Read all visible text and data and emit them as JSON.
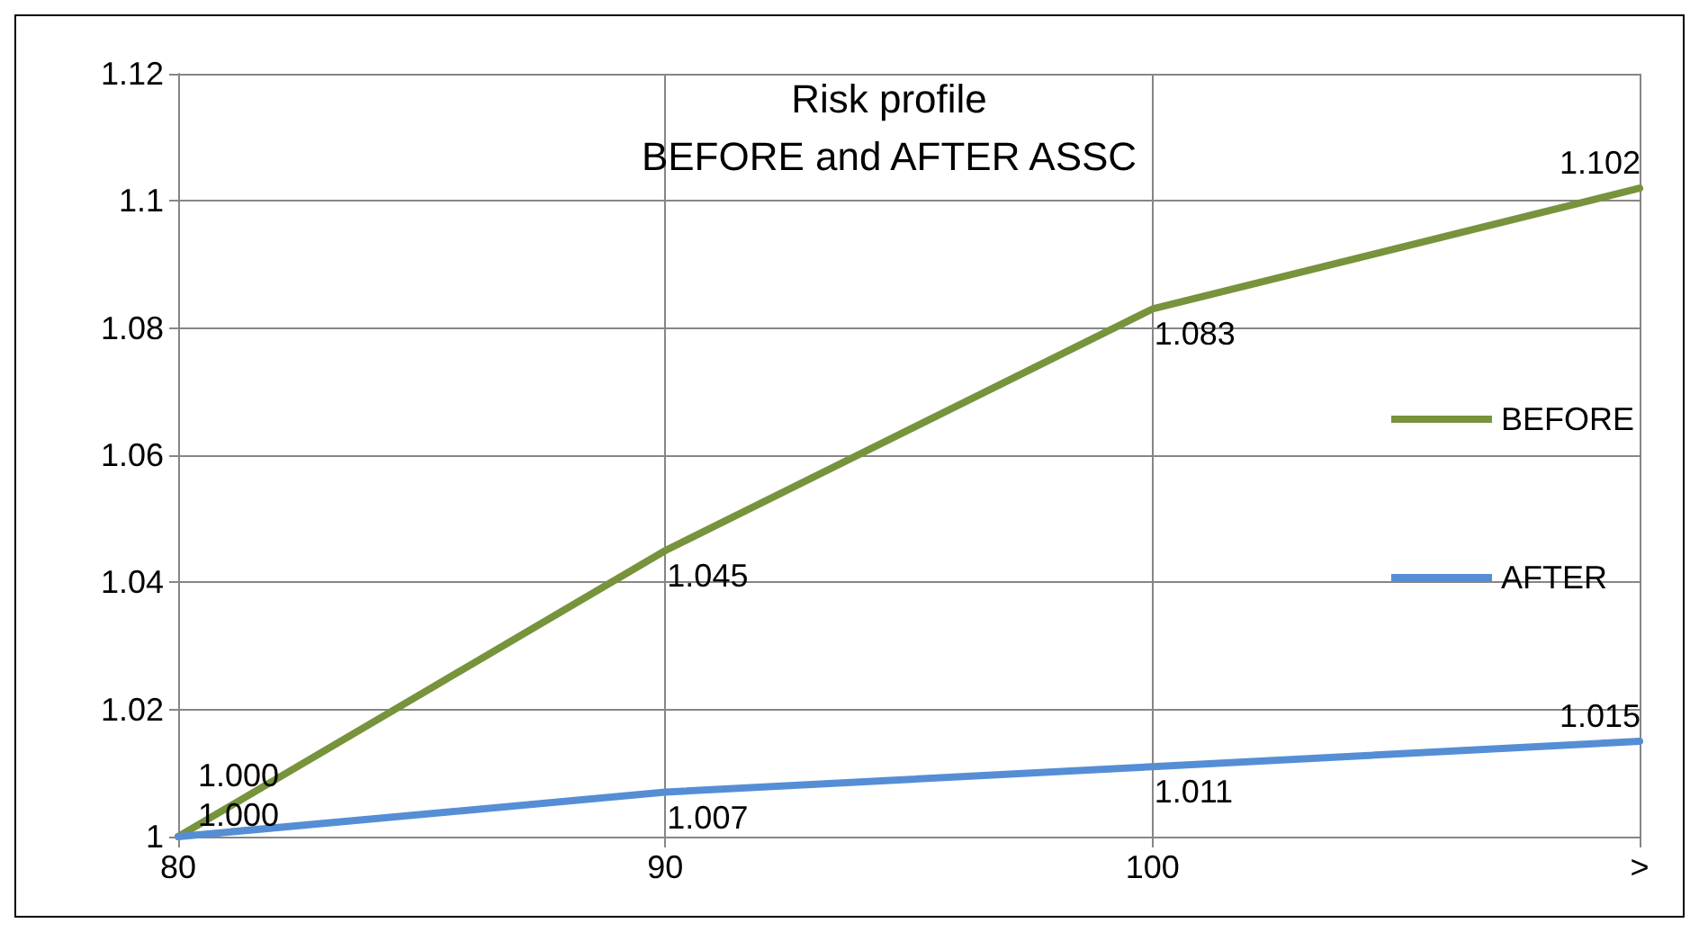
{
  "chart_data": {
    "type": "line",
    "title": "Risk profile",
    "subtitle": "BEFORE and AFTER ASSC",
    "categories": [
      "80",
      "90",
      "100",
      ">"
    ],
    "series": [
      {
        "name": "BEFORE",
        "color": "#77933c",
        "values": [
          1.0,
          1.045,
          1.083,
          1.102
        ],
        "value_labels": [
          "1.000",
          "1.045",
          "1.083",
          "1.102"
        ]
      },
      {
        "name": "AFTER",
        "color": "#558ed5",
        "values": [
          1.0,
          1.007,
          1.011,
          1.015
        ],
        "value_labels": [
          "1.000",
          "1.007",
          "1.011",
          "1.015"
        ]
      }
    ],
    "ylim": [
      1,
      1.12
    ],
    "yticks": [
      1,
      1.02,
      1.04,
      1.06,
      1.08,
      1.1,
      1.12
    ],
    "grid": true,
    "legend": "right",
    "marker": "none",
    "line_style": "solid"
  }
}
